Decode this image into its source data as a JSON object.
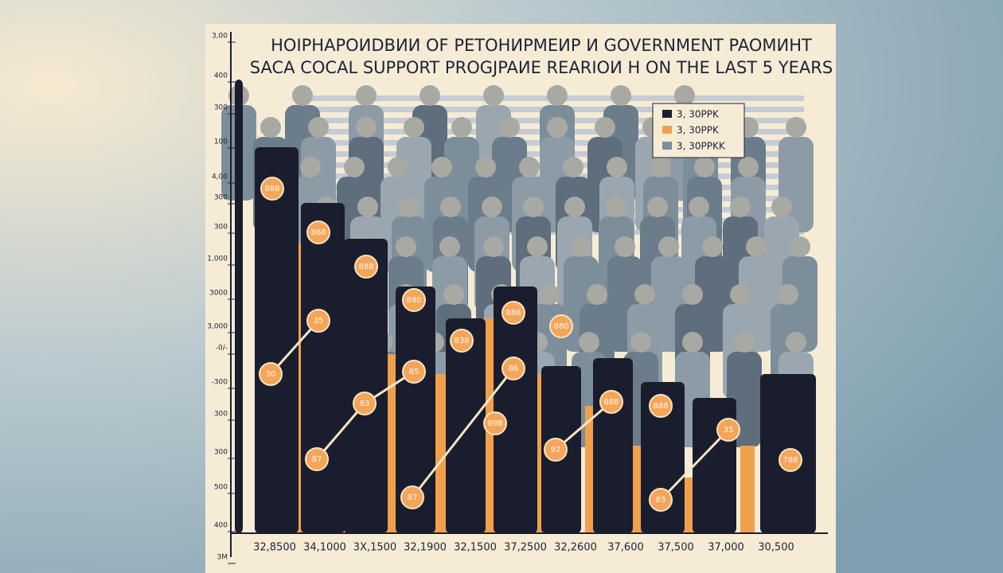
{
  "title": {
    "lines": [
      "HOIPHAPOИDBИИ OF PETOHИPMEИP И GOVERNMENT PAOMИHT",
      "SACA COCAL SUPPORT PROGJPAИE REARIOИ H ON THE LAST 5 YEARS"
    ]
  },
  "legend": [
    "3, 30PPK",
    "3, 30PPK",
    "3, 30PPKK"
  ],
  "y_axis_labels": [
    "3,00",
    "400",
    "300",
    "100",
    "4,00",
    "300",
    "300",
    "1,000",
    "3000",
    "3,000",
    "-0/-",
    "-300",
    "300",
    "300",
    "500",
    "400",
    "3M"
  ],
  "x_axis_labels": [
    "32,8500",
    "34,1000",
    "3X,1500",
    "32,1900",
    "32,1500",
    "37,2500",
    "32,2600",
    "37,600",
    "37,500",
    "37,000",
    "30,500"
  ],
  "bubbles": [
    "888",
    "868",
    "888",
    "880",
    "838",
    "886",
    "880",
    "888",
    "888",
    "898",
    "30",
    "35",
    "85",
    "83",
    "87",
    "87",
    "86",
    "92",
    "35",
    "83",
    "788"
  ]
}
